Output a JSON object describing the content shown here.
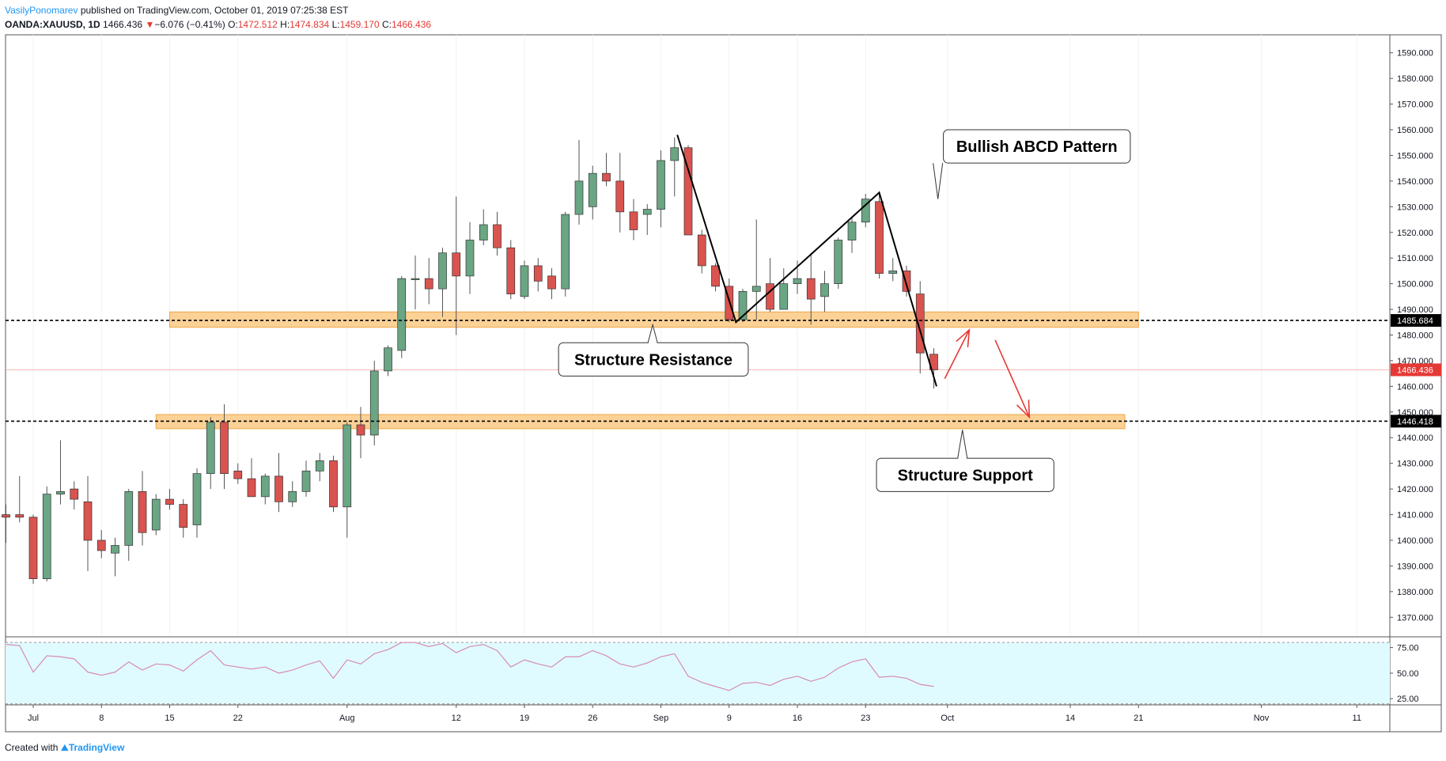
{
  "header": {
    "author": "VasilyPonomarev",
    "published": "published on TradingView.com, October 01, 2019 07:25:38 EST",
    "symbol": "OANDA:XAUUSD, 1D",
    "last": "1466.436",
    "change_arrow": "▼",
    "change": "−6.076 (−0.41%)",
    "o_label": "O:",
    "o": "1472.512",
    "h_label": "H:",
    "h": "1474.834",
    "l_label": "L:",
    "l": "1459.170",
    "c_label": "C:",
    "c": "1466.436"
  },
  "footer": {
    "created_with": "Created with",
    "brand": "TradingView"
  },
  "colors": {
    "up": "#6aa584",
    "down": "#d9534f",
    "zone_fill": "#fbd196",
    "zone_stroke": "#f0a647",
    "rsi_band": "#e0fbff",
    "rsi_line": "#d78bb4",
    "axis_text": "#131722",
    "arrow": "#e53935"
  },
  "chart_data": {
    "type": "candlestick",
    "y_axis": {
      "range": [
        1363,
        1597
      ],
      "ticks": [
        "1590.000",
        "1580.000",
        "1570.000",
        "1560.000",
        "1550.000",
        "1540.000",
        "1530.000",
        "1520.000",
        "1510.000",
        "1500.000",
        "1490.000",
        "1480.000",
        "1470.000",
        "1460.000",
        "1450.000",
        "1440.000",
        "1430.000",
        "1420.000",
        "1410.000",
        "1400.000",
        "1390.000",
        "1380.000",
        "1370.000"
      ]
    },
    "x_axis": {
      "ticks": [
        {
          "label": "Jul",
          "day": 0
        },
        {
          "label": "8",
          "day": 5
        },
        {
          "label": "15",
          "day": 10
        },
        {
          "label": "22",
          "day": 15
        },
        {
          "label": "Aug",
          "day": 23
        },
        {
          "label": "12",
          "day": 31
        },
        {
          "label": "19",
          "day": 36
        },
        {
          "label": "26",
          "day": 41
        },
        {
          "label": "Sep",
          "day": 46
        },
        {
          "label": "9",
          "day": 51
        },
        {
          "label": "16",
          "day": 56
        },
        {
          "label": "23",
          "day": 61
        },
        {
          "label": "Oct",
          "day": 67
        },
        {
          "label": "14",
          "day": 76
        },
        {
          "label": "21",
          "day": 81
        },
        {
          "label": "Nov",
          "day": 90
        },
        {
          "label": "11",
          "day": 97
        }
      ]
    },
    "candles": [
      {
        "d": -2,
        "o": 1410,
        "h": 1414,
        "l": 1399,
        "c": 1409
      },
      {
        "d": -1,
        "o": 1410,
        "h": 1425,
        "l": 1407,
        "c": 1409
      },
      {
        "d": 0,
        "o": 1409,
        "h": 1410,
        "l": 1383,
        "c": 1385
      },
      {
        "d": 1,
        "o": 1385,
        "h": 1421,
        "l": 1384,
        "c": 1418
      },
      {
        "d": 2,
        "o": 1418,
        "h": 1439,
        "l": 1414,
        "c": 1419
      },
      {
        "d": 3,
        "o": 1420,
        "h": 1423,
        "l": 1412,
        "c": 1416
      },
      {
        "d": 4,
        "o": 1415,
        "h": 1425,
        "l": 1388,
        "c": 1400
      },
      {
        "d": 5,
        "o": 1400,
        "h": 1404,
        "l": 1393,
        "c": 1396
      },
      {
        "d": 6,
        "o": 1395,
        "h": 1401,
        "l": 1386,
        "c": 1398
      },
      {
        "d": 7,
        "o": 1398,
        "h": 1420,
        "l": 1392,
        "c": 1419
      },
      {
        "d": 8,
        "o": 1419,
        "h": 1427,
        "l": 1398,
        "c": 1403
      },
      {
        "d": 9,
        "o": 1404,
        "h": 1418,
        "l": 1402,
        "c": 1416
      },
      {
        "d": 10,
        "o": 1416,
        "h": 1420,
        "l": 1412,
        "c": 1414
      },
      {
        "d": 11,
        "o": 1414,
        "h": 1416,
        "l": 1401,
        "c": 1405
      },
      {
        "d": 12,
        "o": 1406,
        "h": 1428,
        "l": 1401,
        "c": 1426
      },
      {
        "d": 13,
        "o": 1426,
        "h": 1448,
        "l": 1420,
        "c": 1446
      },
      {
        "d": 14,
        "o": 1446,
        "h": 1453,
        "l": 1420,
        "c": 1426
      },
      {
        "d": 15,
        "o": 1427,
        "h": 1430,
        "l": 1422,
        "c": 1424
      },
      {
        "d": 16,
        "o": 1424,
        "h": 1432,
        "l": 1418,
        "c": 1417
      },
      {
        "d": 17,
        "o": 1417,
        "h": 1426,
        "l": 1414,
        "c": 1425
      },
      {
        "d": 18,
        "o": 1425,
        "h": 1434,
        "l": 1411,
        "c": 1415
      },
      {
        "d": 19,
        "o": 1415,
        "h": 1423,
        "l": 1413,
        "c": 1419
      },
      {
        "d": 20,
        "o": 1419,
        "h": 1431,
        "l": 1417,
        "c": 1427
      },
      {
        "d": 21,
        "o": 1427,
        "h": 1434,
        "l": 1423,
        "c": 1431
      },
      {
        "d": 22,
        "o": 1431,
        "h": 1433,
        "l": 1411,
        "c": 1413
      },
      {
        "d": 23,
        "o": 1413,
        "h": 1446,
        "l": 1401,
        "c": 1445
      },
      {
        "d": 24,
        "o": 1445,
        "h": 1452,
        "l": 1432,
        "c": 1441
      },
      {
        "d": 25,
        "o": 1441,
        "h": 1470,
        "l": 1437,
        "c": 1466
      },
      {
        "d": 26,
        "o": 1466,
        "h": 1476,
        "l": 1464,
        "c": 1475
      },
      {
        "d": 27,
        "o": 1474,
        "h": 1503,
        "l": 1471,
        "c": 1502
      },
      {
        "d": 28,
        "o": 1502,
        "h": 1511,
        "l": 1490,
        "c": 1502
      },
      {
        "d": 29,
        "o": 1502,
        "h": 1510,
        "l": 1492,
        "c": 1498
      },
      {
        "d": 30,
        "o": 1498,
        "h": 1514,
        "l": 1487,
        "c": 1512
      },
      {
        "d": 31,
        "o": 1512,
        "h": 1534,
        "l": 1480,
        "c": 1503
      },
      {
        "d": 32,
        "o": 1503,
        "h": 1524,
        "l": 1496,
        "c": 1517
      },
      {
        "d": 33,
        "o": 1517,
        "h": 1529,
        "l": 1515,
        "c": 1523
      },
      {
        "d": 34,
        "o": 1523,
        "h": 1528,
        "l": 1511,
        "c": 1514
      },
      {
        "d": 35,
        "o": 1514,
        "h": 1517,
        "l": 1494,
        "c": 1496
      },
      {
        "d": 36,
        "o": 1495,
        "h": 1509,
        "l": 1494,
        "c": 1507
      },
      {
        "d": 37,
        "o": 1507,
        "h": 1510,
        "l": 1497,
        "c": 1501
      },
      {
        "d": 38,
        "o": 1503,
        "h": 1506,
        "l": 1494,
        "c": 1498
      },
      {
        "d": 39,
        "o": 1498,
        "h": 1528,
        "l": 1495,
        "c": 1527
      },
      {
        "d": 40,
        "o": 1527,
        "h": 1556,
        "l": 1523,
        "c": 1540
      },
      {
        "d": 41,
        "o": 1530,
        "h": 1546,
        "l": 1525,
        "c": 1543
      },
      {
        "d": 42,
        "o": 1543,
        "h": 1551,
        "l": 1538,
        "c": 1540
      },
      {
        "d": 43,
        "o": 1540,
        "h": 1551,
        "l": 1520,
        "c": 1528
      },
      {
        "d": 44,
        "o": 1528,
        "h": 1533,
        "l": 1517,
        "c": 1521
      },
      {
        "d": 45,
        "o": 1527,
        "h": 1531,
        "l": 1519,
        "c": 1529
      },
      {
        "d": 46,
        "o": 1529,
        "h": 1552,
        "l": 1522,
        "c": 1548
      },
      {
        "d": 47,
        "o": 1548,
        "h": 1557,
        "l": 1534,
        "c": 1553
      },
      {
        "d": 48,
        "o": 1553,
        "h": 1554,
        "l": 1520,
        "c": 1519
      },
      {
        "d": 49,
        "o": 1519,
        "h": 1521,
        "l": 1504,
        "c": 1507
      },
      {
        "d": 50,
        "o": 1507,
        "h": 1508,
        "l": 1497,
        "c": 1499
      },
      {
        "d": 51,
        "o": 1499,
        "h": 1502,
        "l": 1485,
        "c": 1486
      },
      {
        "d": 52,
        "o": 1486,
        "h": 1498,
        "l": 1485,
        "c": 1497
      },
      {
        "d": 53,
        "o": 1497,
        "h": 1525,
        "l": 1486,
        "c": 1499
      },
      {
        "d": 54,
        "o": 1500,
        "h": 1510,
        "l": 1489,
        "c": 1490
      },
      {
        "d": 55,
        "o": 1490,
        "h": 1506,
        "l": 1490,
        "c": 1500
      },
      {
        "d": 56,
        "o": 1500,
        "h": 1509,
        "l": 1496,
        "c": 1502
      },
      {
        "d": 57,
        "o": 1502,
        "h": 1512,
        "l": 1484,
        "c": 1494
      },
      {
        "d": 58,
        "o": 1495,
        "h": 1505,
        "l": 1489,
        "c": 1500
      },
      {
        "d": 59,
        "o": 1500,
        "h": 1518,
        "l": 1498,
        "c": 1517
      },
      {
        "d": 60,
        "o": 1517,
        "h": 1526,
        "l": 1512,
        "c": 1524
      },
      {
        "d": 61,
        "o": 1524,
        "h": 1535,
        "l": 1522,
        "c": 1533
      },
      {
        "d": 62,
        "o": 1532,
        "h": 1536,
        "l": 1502,
        "c": 1504
      },
      {
        "d": 63,
        "o": 1504,
        "h": 1510,
        "l": 1501,
        "c": 1505
      },
      {
        "d": 64,
        "o": 1505,
        "h": 1507,
        "l": 1495,
        "c": 1497
      },
      {
        "d": 65,
        "o": 1496,
        "h": 1501,
        "l": 1465,
        "c": 1473
      },
      {
        "d": 66,
        "o": 1472.512,
        "h": 1474.834,
        "l": 1459.17,
        "c": 1466.436
      }
    ],
    "levels": [
      {
        "value": 1485.684,
        "label": "1485.684",
        "zone": [
          1483,
          1489
        ],
        "zone_from_day": 10,
        "zone_to_day": 81
      },
      {
        "value": 1446.418,
        "label": "1446.418",
        "zone": [
          1443.5,
          1449
        ],
        "zone_from_day": 9,
        "zone_to_day": 80
      }
    ],
    "last_price": {
      "value": 1466.436,
      "label": "1466.436"
    },
    "abcd_pattern": [
      {
        "day": 47.2,
        "price": 1558
      },
      {
        "day": 51.5,
        "price": 1485
      },
      {
        "day": 62,
        "price": 1535.5
      },
      {
        "day": 66.2,
        "price": 1460
      }
    ],
    "forecast_arrows": [
      {
        "from": {
          "day": 66.8,
          "price": 1463
        },
        "to": {
          "day": 68.6,
          "price": 1482
        }
      },
      {
        "from": {
          "day": 70.5,
          "price": 1478
        },
        "to": {
          "day": 73,
          "price": 1448
        }
      }
    ],
    "annotations": [
      {
        "text": "Bullish ABCD Pattern",
        "box_day": [
          66.7,
          80.4
        ],
        "box_price": [
          1547,
          1560
        ],
        "pointer": {
          "day": 66.3,
          "price": 1533
        }
      },
      {
        "text": "Structure Resistance",
        "box_day": [
          38.5,
          52.4
        ],
        "box_price": [
          1464,
          1477
        ],
        "pointer": {
          "day": 45.4,
          "price": 1484
        }
      },
      {
        "text": "Structure Support",
        "box_day": [
          61.8,
          74.8
        ],
        "box_price": [
          1419,
          1432
        ],
        "pointer": {
          "day": 68.1,
          "price": 1443
        }
      }
    ],
    "rsi": {
      "range": [
        19,
        84
      ],
      "ticks": [
        "75.00",
        "50.00",
        "25.00"
      ],
      "upper_band": 80,
      "lower_band": 20,
      "values": [
        [
          -2,
          78
        ],
        [
          -1,
          77
        ],
        [
          0,
          51
        ],
        [
          1,
          67
        ],
        [
          2,
          66
        ],
        [
          3,
          64
        ],
        [
          4,
          51
        ],
        [
          5,
          48
        ],
        [
          6,
          51
        ],
        [
          7,
          61
        ],
        [
          8,
          53
        ],
        [
          9,
          59
        ],
        [
          10,
          58
        ],
        [
          11,
          52
        ],
        [
          12,
          63
        ],
        [
          13,
          72
        ],
        [
          14,
          58
        ],
        [
          15,
          56
        ],
        [
          16,
          54
        ],
        [
          17,
          56
        ],
        [
          18,
          50
        ],
        [
          19,
          53
        ],
        [
          20,
          58
        ],
        [
          21,
          62
        ],
        [
          22,
          45
        ],
        [
          23,
          63
        ],
        [
          24,
          59
        ],
        [
          25,
          69
        ],
        [
          26,
          73
        ],
        [
          27,
          80
        ],
        [
          28,
          80
        ],
        [
          29,
          76
        ],
        [
          30,
          79
        ],
        [
          31,
          70
        ],
        [
          32,
          76
        ],
        [
          33,
          78
        ],
        [
          34,
          72
        ],
        [
          35,
          56
        ],
        [
          36,
          63
        ],
        [
          37,
          59
        ],
        [
          38,
          56
        ],
        [
          39,
          66
        ],
        [
          40,
          66
        ],
        [
          41,
          72
        ],
        [
          42,
          67
        ],
        [
          43,
          59
        ],
        [
          44,
          56
        ],
        [
          45,
          60
        ],
        [
          46,
          66
        ],
        [
          47,
          69
        ],
        [
          48,
          47
        ],
        [
          49,
          41
        ],
        [
          50,
          37
        ],
        [
          51,
          33
        ],
        [
          52,
          40
        ],
        [
          53,
          41
        ],
        [
          54,
          38
        ],
        [
          55,
          44
        ],
        [
          56,
          47
        ],
        [
          57,
          42
        ],
        [
          58,
          46
        ],
        [
          59,
          55
        ],
        [
          60,
          61
        ],
        [
          61,
          64
        ],
        [
          62,
          46
        ],
        [
          63,
          47
        ],
        [
          64,
          45
        ],
        [
          65,
          39
        ],
        [
          66,
          37
        ]
      ]
    }
  }
}
